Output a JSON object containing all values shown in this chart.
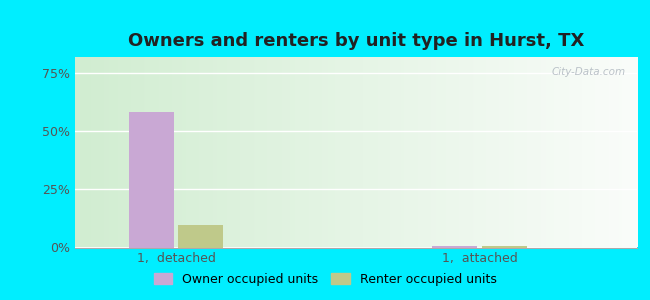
{
  "title": "Owners and renters by unit type in Hurst, TX",
  "categories": [
    "1,  detached",
    "1,  attached"
  ],
  "owner_values": [
    0.585,
    0.008
  ],
  "renter_values": [
    0.095,
    0.008
  ],
  "owner_color": "#c9a8d4",
  "renter_color": "#bfc98a",
  "yticks": [
    0.0,
    0.25,
    0.5,
    0.75
  ],
  "ytick_labels": [
    "0%",
    "25%",
    "50%",
    "75%"
  ],
  "ylim": [
    0,
    0.82
  ],
  "outer_bg": "#00eeff",
  "plot_bg_left": "#c8e6c0",
  "plot_bg_right": "#e8f4e8",
  "legend_owner": "Owner occupied units",
  "legend_renter": "Renter occupied units",
  "watermark": "City-Data.com",
  "bar_width": 0.08,
  "title_fontsize": 13
}
